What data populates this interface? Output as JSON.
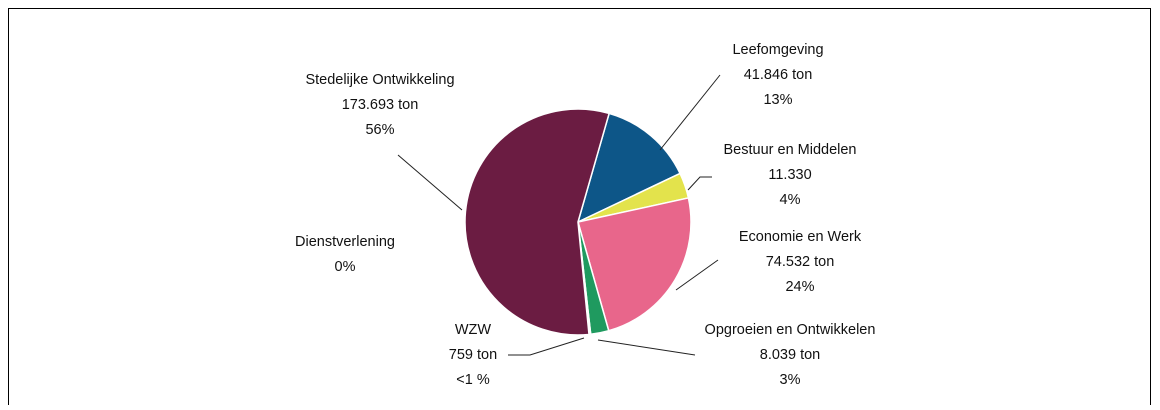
{
  "chart_data": {
    "type": "pie",
    "series": [
      {
        "name": "Leefomgeving",
        "color": "#0d5688",
        "values": [
          41846
        ],
        "value_labels": [
          "41.846 ton"
        ],
        "percent_label": "13%"
      },
      {
        "name": "Bestuur en Middelen",
        "color": "#e3e34c",
        "values": [
          11330
        ],
        "value_labels": [
          "11.330"
        ],
        "percent_label": "4%"
      },
      {
        "name": "Economie en Werk",
        "color": "#e8668b",
        "values": [
          74532
        ],
        "value_labels": [
          "74.532 ton"
        ],
        "percent_label": "24%"
      },
      {
        "name": "Opgroeien en Ontwikkelen",
        "color": "#1f9a5f",
        "values": [
          8039
        ],
        "value_labels": [
          "8.039 ton"
        ],
        "percent_label": "3%"
      },
      {
        "name": "WZW",
        "color": "#f4f4f4",
        "values": [
          759
        ],
        "value_labels": [
          "759 ton"
        ],
        "percent_label": "<1 %"
      },
      {
        "name": "Dienstverlening",
        "color": "#a0a0a0",
        "values": [
          0
        ],
        "value_labels": [
          null
        ],
        "percent_label": "0%"
      },
      {
        "name": "Stedelijke Ontwikkeling",
        "color": "#6b1c42",
        "values": [
          173693
        ],
        "value_labels": [
          "173.693 ton"
        ],
        "percent_label": "56%"
      }
    ]
  }
}
